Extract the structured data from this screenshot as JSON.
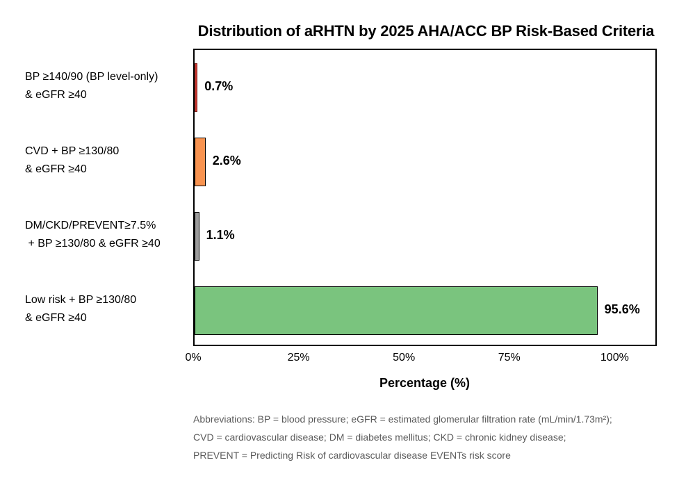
{
  "title": "Distribution of aRHTN by 2025 AHA/ACC BP Risk-Based Criteria",
  "chart_data": {
    "type": "bar",
    "orientation": "horizontal",
    "title": "Distribution of aRHTN by 2025 AHA/ACC BP Risk-Based Criteria",
    "xlabel": "Percentage (%)",
    "ylabel": "",
    "xlim": [
      0,
      110
    ],
    "grid": false,
    "legend": "none",
    "x_ticks": [
      {
        "value": 0,
        "label": "0%"
      },
      {
        "value": 25,
        "label": "25%"
      },
      {
        "value": 50,
        "label": "50%"
      },
      {
        "value": 75,
        "label": "75%"
      },
      {
        "value": 100,
        "label": "100%"
      }
    ],
    "bars": [
      {
        "category_lines": [
          "BP ≥140/90 (BP level-only)",
          "& eGFR ≥40"
        ],
        "value": 0.7,
        "label": "0.7%",
        "fill": "#cc3b33",
        "border": "#7e1f1a"
      },
      {
        "category_lines": [
          "CVD + BP ≥130/80",
          "& eGFR ≥40"
        ],
        "value": 2.6,
        "label": "2.6%",
        "fill": "#f89350",
        "border": "#000000"
      },
      {
        "category_lines": [
          "DM/CKD/PREVENT≥7.5%",
          " + BP ≥130/80 & eGFR ≥40"
        ],
        "value": 1.1,
        "label": "1.1%",
        "fill": "#9c9c9c",
        "border": "#000000"
      },
      {
        "category_lines": [
          "Low risk + BP ≥130/80",
          "& eGFR ≥40"
        ],
        "value": 95.6,
        "label": "95.6%",
        "fill": "#7ac47e",
        "border": "#000000"
      }
    ]
  },
  "footnote": {
    "lines": [
      "Abbreviations: BP = blood pressure; eGFR = estimated glomerular filtration rate (mL/min/1.73m²);",
      "CVD = cardiovascular disease; DM = diabetes mellitus; CKD = chronic kidney disease;",
      "PREVENT = Predicting Risk of cardiovascular disease EVENTs risk score"
    ]
  }
}
